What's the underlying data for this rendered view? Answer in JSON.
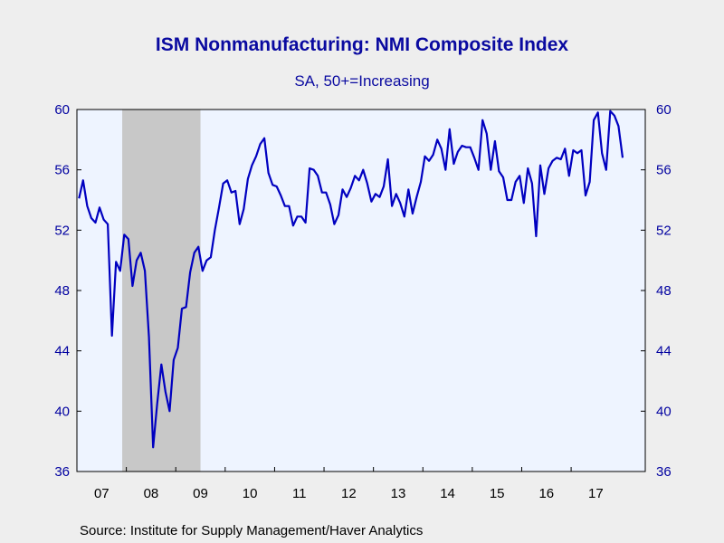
{
  "chart_data": {
    "type": "line",
    "title": "ISM Nonmanufacturing: NMI Composite Index",
    "subtitle": "SA, 50+=Increasing",
    "source": "Source:  Institute for Supply Management/Haver Analytics",
    "ylim": [
      36,
      60
    ],
    "yticks": [
      36,
      40,
      44,
      48,
      52,
      56,
      60
    ],
    "xlabels": [
      "07",
      "08",
      "09",
      "10",
      "11",
      "12",
      "13",
      "14",
      "15",
      "16",
      "17"
    ],
    "x_start": "2007-01",
    "recession_shading": {
      "start": "2007-12",
      "end": "2009-06"
    },
    "colors": {
      "line": "#0000c0",
      "recession": "#c8c8c8",
      "plot_bg": "#eef4ff",
      "axis_text": "#0000a0"
    },
    "series": [
      {
        "values": [
          54.1,
          55.3,
          53.6,
          52.8,
          52.5,
          53.5,
          52.7,
          52.4,
          45.0,
          49.9,
          49.3,
          51.7,
          51.4,
          48.3,
          50.0,
          50.5,
          49.3,
          44.9,
          37.6,
          40.5,
          43.1,
          41.3,
          40.0,
          43.4,
          44.2,
          46.8,
          46.9,
          49.2,
          50.5,
          50.9,
          49.3,
          50.0,
          50.2,
          52.0,
          53.5,
          55.1,
          55.3,
          54.5,
          54.6,
          52.4,
          53.4,
          55.4,
          56.3,
          56.9,
          57.7,
          58.1,
          55.8,
          55.0,
          54.9,
          54.3,
          53.6,
          53.6,
          52.3,
          52.9,
          52.9,
          52.5,
          56.1,
          56.0,
          55.6,
          54.5,
          54.5,
          53.7,
          52.4,
          53.0,
          54.7,
          54.2,
          54.8,
          55.6,
          55.3,
          56.0,
          55.1,
          53.9,
          54.4,
          54.2,
          54.9,
          56.7,
          53.6,
          54.4,
          53.8,
          52.9,
          54.7,
          53.1,
          54.2,
          55.2,
          56.9,
          56.6,
          57.0,
          58.0,
          57.4,
          56.0,
          58.7,
          56.4,
          57.2,
          57.6,
          57.5,
          57.5,
          56.8,
          56.0,
          59.3,
          58.4,
          56.0,
          57.9,
          55.9,
          55.5,
          54.0,
          54.0,
          55.2,
          55.6,
          53.8,
          56.1,
          55.1,
          51.6,
          56.3,
          54.4,
          56.1,
          56.6,
          56.8,
          56.7,
          57.4,
          55.6,
          57.3,
          57.1,
          57.3,
          54.3,
          55.2,
          59.3,
          59.8,
          57.1,
          56.0,
          59.9,
          59.6,
          58.9,
          56.8
        ]
      }
    ]
  }
}
